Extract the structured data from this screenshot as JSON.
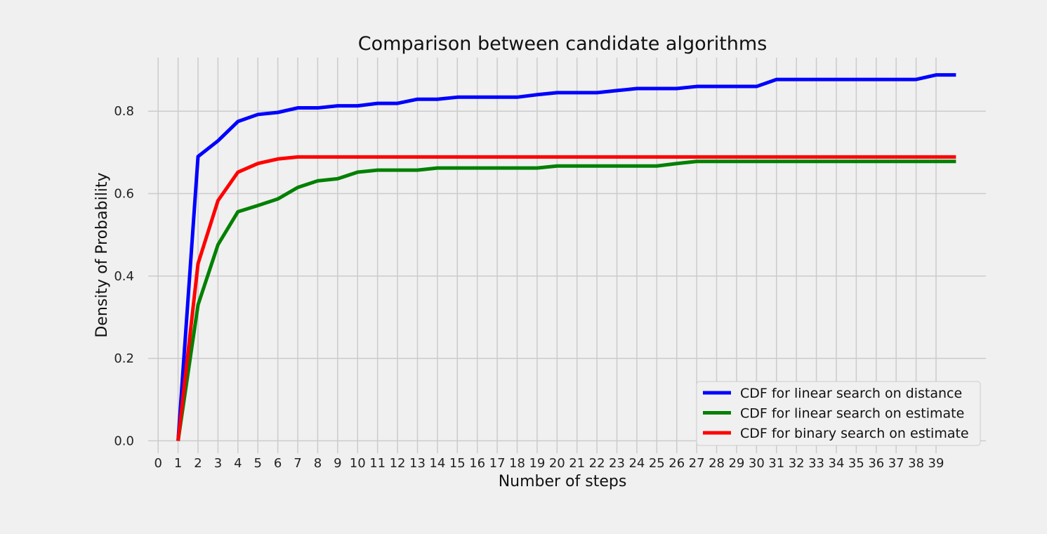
{
  "chart_data": {
    "type": "line",
    "title": "Comparison between candidate algorithms",
    "xlabel": "Number of steps",
    "ylabel": "Density of Probability",
    "xlim": [
      -0.5,
      41.5
    ],
    "ylim": [
      -0.03,
      0.93
    ],
    "xticks": [
      0,
      1,
      2,
      3,
      4,
      5,
      6,
      7,
      8,
      9,
      10,
      11,
      12,
      13,
      14,
      15,
      16,
      17,
      18,
      19,
      20,
      21,
      22,
      23,
      24,
      25,
      26,
      27,
      28,
      29,
      30,
      31,
      32,
      33,
      34,
      35,
      36,
      37,
      38,
      39
    ],
    "yticks": [
      0.0,
      0.2,
      0.4,
      0.6,
      0.8
    ],
    "ytick_labels": [
      "0.0",
      "0.2",
      "0.4",
      "0.6",
      "0.8"
    ],
    "grid": true,
    "legend_position": "lower-right",
    "x": [
      1,
      2,
      3,
      4,
      5,
      6,
      7,
      8,
      9,
      10,
      11,
      12,
      13,
      14,
      15,
      16,
      17,
      18,
      19,
      20,
      21,
      22,
      23,
      24,
      25,
      26,
      27,
      28,
      29,
      30,
      31,
      32,
      33,
      34,
      35,
      36,
      37,
      38,
      39,
      40
    ],
    "series": [
      {
        "name": "CDF for linear search on distance",
        "color": "#0000ff",
        "values": [
          0.0,
          0.69,
          0.728,
          0.775,
          0.792,
          0.797,
          0.808,
          0.808,
          0.813,
          0.813,
          0.819,
          0.819,
          0.829,
          0.829,
          0.834,
          0.834,
          0.834,
          0.834,
          0.84,
          0.845,
          0.845,
          0.845,
          0.85,
          0.855,
          0.855,
          0.855,
          0.86,
          0.86,
          0.86,
          0.86,
          0.877,
          0.877,
          0.877,
          0.877,
          0.877,
          0.877,
          0.877,
          0.877,
          0.888,
          0.888
        ]
      },
      {
        "name": "CDF for linear search on estimate",
        "color": "#008000",
        "values": [
          0.0,
          0.33,
          0.476,
          0.556,
          0.571,
          0.587,
          0.615,
          0.631,
          0.636,
          0.652,
          0.657,
          0.657,
          0.657,
          0.662,
          0.662,
          0.662,
          0.662,
          0.662,
          0.662,
          0.667,
          0.667,
          0.667,
          0.667,
          0.667,
          0.667,
          0.673,
          0.678,
          0.678,
          0.678,
          0.678,
          0.678,
          0.678,
          0.678,
          0.678,
          0.678,
          0.678,
          0.678,
          0.678,
          0.678,
          0.678
        ]
      },
      {
        "name": "CDF for binary search on estimate",
        "color": "#ff0000",
        "values": [
          0.0,
          0.43,
          0.583,
          0.652,
          0.673,
          0.684,
          0.689,
          0.689,
          0.689,
          0.689,
          0.689,
          0.689,
          0.689,
          0.689,
          0.689,
          0.689,
          0.689,
          0.689,
          0.689,
          0.689,
          0.689,
          0.689,
          0.689,
          0.689,
          0.689,
          0.689,
          0.689,
          0.689,
          0.689,
          0.689,
          0.689,
          0.689,
          0.689,
          0.689,
          0.689,
          0.689,
          0.689,
          0.689,
          0.689,
          0.689
        ]
      }
    ]
  }
}
